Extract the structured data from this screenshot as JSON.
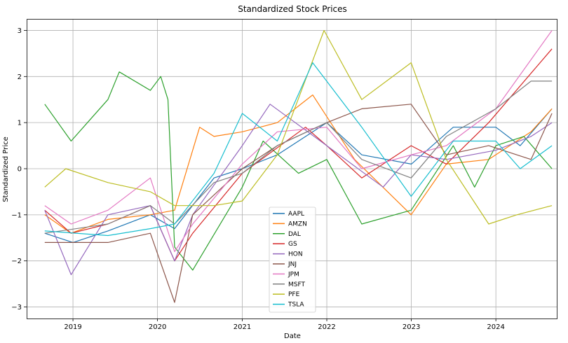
{
  "chart_data": {
    "type": "line",
    "title": "Standardized Stock Prices",
    "xlabel": "Date",
    "ylabel": "Standardized Price",
    "xlim": [
      "2018-06-15",
      "2024-09-20"
    ],
    "ylim": [
      -3.25,
      3.25
    ],
    "x_ticks": [
      "2019-01-01",
      "2020-01-01",
      "2021-01-01",
      "2022-01-01",
      "2023-01-01",
      "2024-01-01"
    ],
    "x_tick_labels": [
      "2019",
      "2020",
      "2021",
      "2022",
      "2023",
      "2024"
    ],
    "y_ticks": [
      -3,
      -2,
      -1,
      0,
      1,
      2,
      3
    ],
    "y_tick_labels": [
      "−3",
      "−2",
      "−1",
      "0",
      "1",
      "2",
      "3"
    ],
    "grid": true,
    "legend_position": "lower center",
    "series": [
      {
        "name": "AAPL",
        "color": "#1f77b4",
        "points": [
          [
            "2018-09-01",
            -1.4
          ],
          [
            "2019-01-01",
            -1.6
          ],
          [
            "2019-06-01",
            -1.35
          ],
          [
            "2019-12-01",
            -1.0
          ],
          [
            "2020-03-15",
            -1.3
          ],
          [
            "2020-09-01",
            -0.2
          ],
          [
            "2021-01-01",
            0.0
          ],
          [
            "2021-06-01",
            0.3
          ],
          [
            "2022-01-01",
            1.0
          ],
          [
            "2022-06-01",
            0.3
          ],
          [
            "2023-01-01",
            0.1
          ],
          [
            "2023-07-01",
            0.9
          ],
          [
            "2024-01-01",
            0.9
          ],
          [
            "2024-04-15",
            0.5
          ],
          [
            "2024-08-30",
            1.3
          ]
        ]
      },
      {
        "name": "AMZN",
        "color": "#ff7f0e",
        "points": [
          [
            "2018-09-01",
            -1.0
          ],
          [
            "2018-12-24",
            -1.4
          ],
          [
            "2019-06-01",
            -1.1
          ],
          [
            "2019-12-01",
            -1.0
          ],
          [
            "2020-03-15",
            -0.9
          ],
          [
            "2020-07-01",
            0.9
          ],
          [
            "2020-09-01",
            0.7
          ],
          [
            "2021-01-01",
            0.8
          ],
          [
            "2021-06-01",
            1.0
          ],
          [
            "2021-11-01",
            1.6
          ],
          [
            "2022-05-01",
            0.2
          ],
          [
            "2022-12-31",
            -1.0
          ],
          [
            "2023-06-01",
            0.1
          ],
          [
            "2023-12-01",
            0.2
          ],
          [
            "2024-06-01",
            0.8
          ],
          [
            "2024-08-30",
            1.3
          ]
        ]
      },
      {
        "name": "DAL",
        "color": "#2ca02c",
        "points": [
          [
            "2018-09-01",
            1.4
          ],
          [
            "2018-12-24",
            0.6
          ],
          [
            "2019-06-01",
            1.5
          ],
          [
            "2019-07-20",
            2.1
          ],
          [
            "2019-12-01",
            1.7
          ],
          [
            "2020-01-15",
            2.0
          ],
          [
            "2020-02-15",
            1.5
          ],
          [
            "2020-03-15",
            -1.7
          ],
          [
            "2020-06-01",
            -2.2
          ],
          [
            "2021-01-01",
            -0.4
          ],
          [
            "2021-04-01",
            0.6
          ],
          [
            "2021-09-01",
            -0.1
          ],
          [
            "2022-01-01",
            0.2
          ],
          [
            "2022-06-01",
            -1.2
          ],
          [
            "2022-12-31",
            -0.9
          ],
          [
            "2023-07-01",
            0.5
          ],
          [
            "2023-10-01",
            -0.4
          ],
          [
            "2024-01-01",
            0.5
          ],
          [
            "2024-05-01",
            0.7
          ],
          [
            "2024-08-30",
            0.0
          ]
        ]
      },
      {
        "name": "GS",
        "color": "#d62728",
        "points": [
          [
            "2018-09-01",
            -0.9
          ],
          [
            "2018-12-24",
            -1.4
          ],
          [
            "2019-06-01",
            -1.2
          ],
          [
            "2019-12-01",
            -0.8
          ],
          [
            "2020-03-15",
            -2.0
          ],
          [
            "2020-06-01",
            -1.4
          ],
          [
            "2021-01-01",
            -0.1
          ],
          [
            "2021-10-01",
            0.9
          ],
          [
            "2022-01-01",
            0.5
          ],
          [
            "2022-06-01",
            -0.2
          ],
          [
            "2022-12-31",
            0.5
          ],
          [
            "2023-06-01",
            0.1
          ],
          [
            "2023-12-01",
            1.0
          ],
          [
            "2024-08-30",
            2.6
          ]
        ]
      },
      {
        "name": "HON",
        "color": "#9467bd",
        "points": [
          [
            "2018-09-01",
            -0.9
          ],
          [
            "2018-12-24",
            -2.3
          ],
          [
            "2019-06-01",
            -1.0
          ],
          [
            "2019-12-01",
            -0.8
          ],
          [
            "2020-03-15",
            -2.0
          ],
          [
            "2020-06-01",
            -1.0
          ],
          [
            "2021-01-01",
            0.5
          ],
          [
            "2021-05-01",
            1.4
          ],
          [
            "2022-01-01",
            0.5
          ],
          [
            "2022-09-01",
            -0.4
          ],
          [
            "2022-12-31",
            0.3
          ],
          [
            "2023-06-01",
            0.2
          ],
          [
            "2024-01-01",
            0.4
          ],
          [
            "2024-06-01",
            0.7
          ],
          [
            "2024-08-30",
            1.0
          ]
        ]
      },
      {
        "name": "JNJ",
        "color": "#8c564b",
        "points": [
          [
            "2018-09-01",
            -1.6
          ],
          [
            "2019-06-01",
            -1.6
          ],
          [
            "2019-12-01",
            -1.4
          ],
          [
            "2020-03-15",
            -2.9
          ],
          [
            "2020-06-01",
            -1.0
          ],
          [
            "2021-01-01",
            0.0
          ],
          [
            "2021-06-01",
            0.5
          ],
          [
            "2022-01-01",
            1.0
          ],
          [
            "2022-06-01",
            1.3
          ],
          [
            "2022-12-31",
            1.4
          ],
          [
            "2023-06-01",
            0.3
          ],
          [
            "2023-12-01",
            0.5
          ],
          [
            "2024-06-01",
            0.2
          ],
          [
            "2024-08-30",
            1.2
          ]
        ]
      },
      {
        "name": "JPM",
        "color": "#e377c2",
        "points": [
          [
            "2018-09-01",
            -0.8
          ],
          [
            "2018-12-24",
            -1.2
          ],
          [
            "2019-06-01",
            -0.9
          ],
          [
            "2019-12-01",
            -0.2
          ],
          [
            "2020-03-15",
            -1.8
          ],
          [
            "2020-06-01",
            -1.2
          ],
          [
            "2021-01-01",
            0.1
          ],
          [
            "2021-06-01",
            0.8
          ],
          [
            "2022-01-01",
            0.9
          ],
          [
            "2022-06-01",
            0.0
          ],
          [
            "2022-12-31",
            0.3
          ],
          [
            "2023-06-01",
            0.5
          ],
          [
            "2024-01-01",
            1.3
          ],
          [
            "2024-08-30",
            3.0
          ]
        ]
      },
      {
        "name": "MSFT",
        "color": "#7f7f7f",
        "points": [
          [
            "2018-09-01",
            -1.4
          ],
          [
            "2019-06-01",
            -1.2
          ],
          [
            "2019-12-01",
            -0.8
          ],
          [
            "2020-03-15",
            -1.2
          ],
          [
            "2020-09-01",
            -0.3
          ],
          [
            "2021-01-01",
            -0.1
          ],
          [
            "2021-06-01",
            0.5
          ],
          [
            "2022-01-01",
            1.0
          ],
          [
            "2022-06-01",
            0.2
          ],
          [
            "2022-12-31",
            -0.2
          ],
          [
            "2023-06-01",
            0.7
          ],
          [
            "2024-01-01",
            1.3
          ],
          [
            "2024-06-01",
            1.9
          ],
          [
            "2024-08-30",
            1.9
          ]
        ]
      },
      {
        "name": "PFE",
        "color": "#bcbd22",
        "points": [
          [
            "2018-09-01",
            -0.4
          ],
          [
            "2018-12-01",
            0.0
          ],
          [
            "2019-06-01",
            -0.3
          ],
          [
            "2019-12-01",
            -0.5
          ],
          [
            "2020-03-15",
            -0.8
          ],
          [
            "2020-09-01",
            -0.8
          ],
          [
            "2021-01-01",
            -0.7
          ],
          [
            "2021-06-01",
            0.3
          ],
          [
            "2021-12-20",
            3.0
          ],
          [
            "2022-06-01",
            1.5
          ],
          [
            "2022-12-31",
            2.3
          ],
          [
            "2023-06-01",
            0.2
          ],
          [
            "2023-12-01",
            -1.2
          ],
          [
            "2024-04-01",
            -1.0
          ],
          [
            "2024-08-30",
            -0.8
          ]
        ]
      },
      {
        "name": "TSLA",
        "color": "#17becf",
        "points": [
          [
            "2018-09-01",
            -1.35
          ],
          [
            "2019-06-01",
            -1.45
          ],
          [
            "2019-12-01",
            -1.3
          ],
          [
            "2020-03-15",
            -1.2
          ],
          [
            "2020-09-01",
            -0.1
          ],
          [
            "2021-01-01",
            1.2
          ],
          [
            "2021-06-01",
            0.6
          ],
          [
            "2021-11-01",
            2.3
          ],
          [
            "2022-06-01",
            0.9
          ],
          [
            "2022-12-31",
            -0.6
          ],
          [
            "2023-07-01",
            0.6
          ],
          [
            "2024-01-01",
            0.6
          ],
          [
            "2024-04-15",
            0.0
          ],
          [
            "2024-08-30",
            0.5
          ]
        ]
      }
    ]
  }
}
